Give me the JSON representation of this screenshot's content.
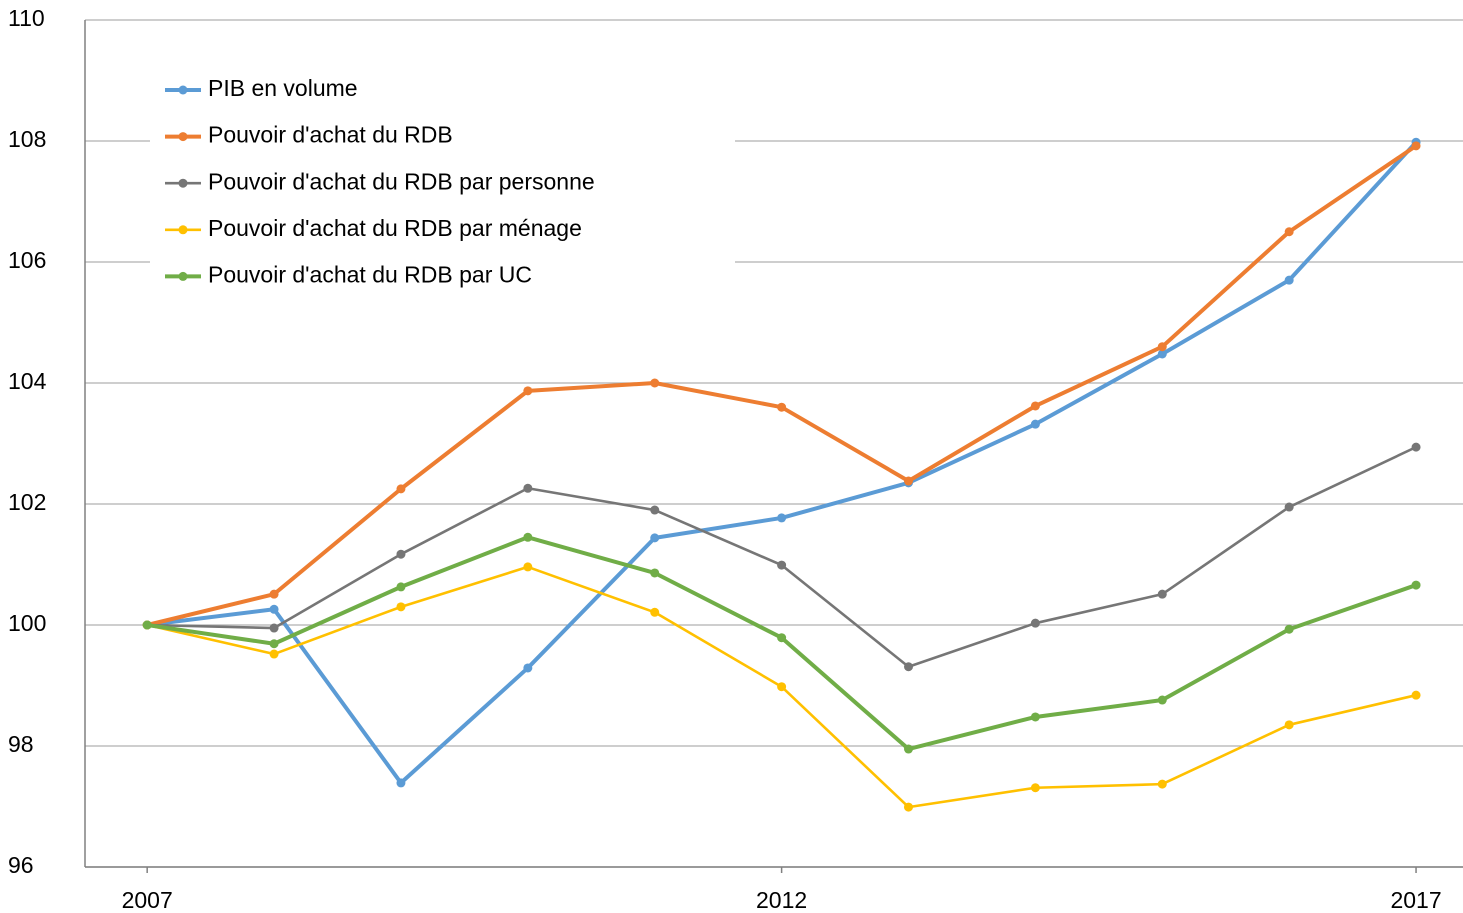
{
  "chart_data": {
    "type": "line",
    "x": [
      2007,
      2008,
      2009,
      2010,
      2011,
      2012,
      2013,
      2014,
      2015,
      2016,
      2017
    ],
    "xlim": [
      2006.51,
      2017.37
    ],
    "xticks": [
      2007,
      2012,
      2017
    ],
    "ylim": [
      96,
      110
    ],
    "yticks": [
      96,
      98,
      100,
      102,
      104,
      106,
      108,
      110
    ],
    "grid": true,
    "legend": "upper left",
    "series": [
      {
        "name": "PIB en volume",
        "color": "#5b9bd5",
        "values": [
          100,
          100.26,
          97.39,
          99.29,
          101.44,
          101.77,
          102.35,
          103.32,
          104.48,
          105.7,
          107.98
        ]
      },
      {
        "name": "Pouvoir d'achat du RDB",
        "color": "#ed7d31",
        "values": [
          100,
          100.51,
          102.25,
          103.87,
          104.0,
          103.6,
          102.38,
          103.62,
          104.6,
          106.5,
          107.92
        ]
      },
      {
        "name": "Pouvoir d'achat du RDB par personne",
        "color": "#767676",
        "values": [
          100,
          99.95,
          101.17,
          102.26,
          101.9,
          100.99,
          99.31,
          100.03,
          100.51,
          101.95,
          102.94
        ]
      },
      {
        "name": "Pouvoir d'achat du RDB par ménage",
        "color": "#ffc000",
        "values": [
          100,
          99.52,
          100.3,
          100.96,
          100.21,
          98.98,
          96.99,
          97.31,
          97.37,
          98.35,
          98.84
        ]
      },
      {
        "name": "Pouvoir d'achat du RDB par UC",
        "color": "#70ad47",
        "values": [
          100,
          99.69,
          100.63,
          101.45,
          100.86,
          99.79,
          97.95,
          98.48,
          98.76,
          99.93,
          100.66
        ]
      }
    ]
  }
}
